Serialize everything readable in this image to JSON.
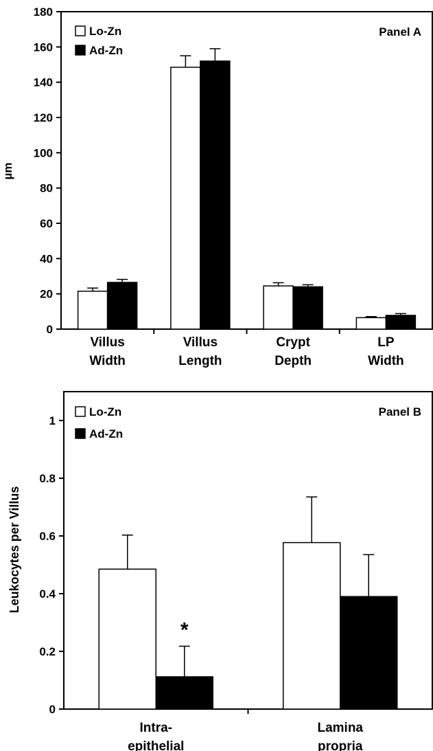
{
  "chart_data": [
    {
      "type": "bar",
      "panel_label": "Panel A",
      "ylabel": "µm",
      "ylim": [
        0,
        180
      ],
      "yticks": [
        "0",
        "20",
        "40",
        "60",
        "80",
        "100",
        "120",
        "140",
        "160",
        "180"
      ],
      "categories": [
        [
          "Villus",
          "Width"
        ],
        [
          "Villus",
          "Length"
        ],
        [
          "Crypt",
          "Depth"
        ],
        [
          "LP",
          "Width"
        ]
      ],
      "series": [
        {
          "name": "Lo-Zn",
          "values": [
            21.5,
            148.5,
            24.5,
            6.5
          ],
          "errors": [
            1.8,
            6.5,
            1.8,
            0.6
          ]
        },
        {
          "name": "Ad-Zn",
          "values": [
            26.5,
            152.0,
            24.0,
            7.8
          ],
          "errors": [
            1.7,
            7.0,
            1.2,
            1.0
          ]
        }
      ],
      "legend": "top-left",
      "grid": false
    },
    {
      "type": "bar",
      "panel_label": "Panel B",
      "ylabel": "Leukocytes per Villus",
      "ylim": [
        0,
        1.1
      ],
      "yticks": [
        "0",
        "0.2",
        "0.4",
        "0.6",
        "0.8",
        "1"
      ],
      "categories": [
        [
          "Intra-",
          "epithelial"
        ],
        [
          "Lamina",
          "propria"
        ]
      ],
      "series": [
        {
          "name": "Lo-Zn",
          "values": [
            0.485,
            0.577
          ],
          "errors": [
            0.118,
            0.158
          ]
        },
        {
          "name": "Ad-Zn",
          "values": [
            0.112,
            0.39
          ],
          "errors": [
            0.106,
            0.145
          ]
        }
      ],
      "annotations": [
        {
          "text": "*",
          "category": 0,
          "series": 1
        }
      ],
      "legend": "top-left",
      "grid": false
    }
  ],
  "colors": {
    "Lo-Zn": "#ffffff",
    "Ad-Zn": "#000000",
    "axis": "#000000"
  }
}
